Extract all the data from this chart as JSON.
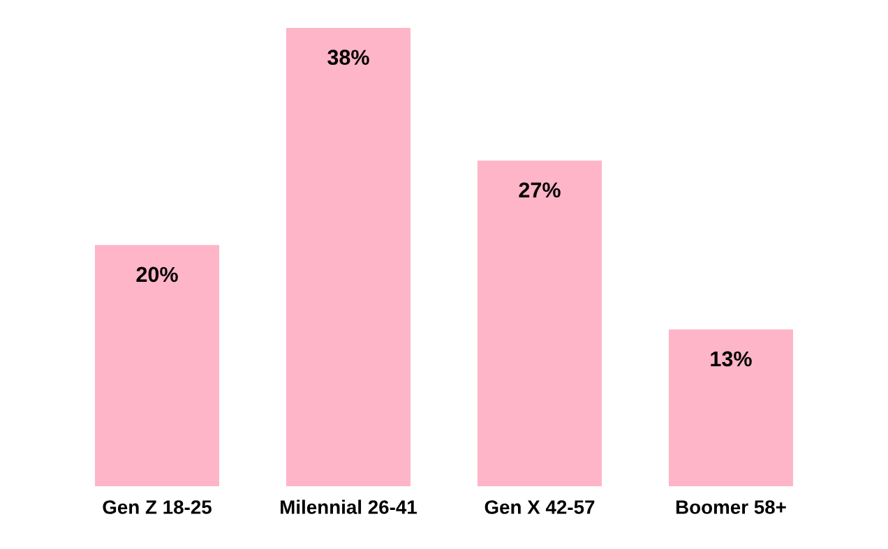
{
  "chart_data": {
    "type": "bar",
    "categories": [
      "Gen Z 18-25",
      "Milennial 26-41",
      "Gen X 42-57",
      "Boomer 58+"
    ],
    "values": [
      20,
      38,
      27,
      13
    ],
    "value_labels": [
      "20%",
      "38%",
      "27%",
      "13%"
    ],
    "color": "#ffb5c8",
    "ylim": [
      0,
      38
    ],
    "tick_labels": "x",
    "grid": false,
    "legend": false
  }
}
